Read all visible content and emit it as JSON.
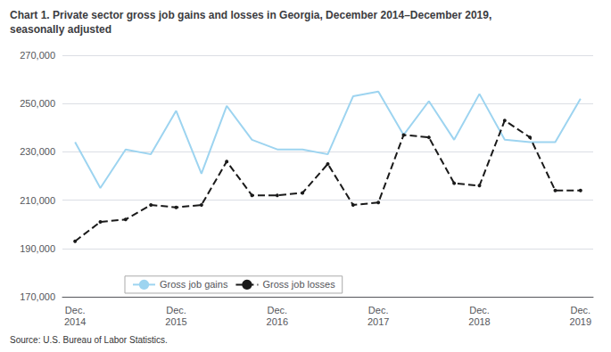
{
  "chart_data": {
    "type": "line",
    "title": "Chart 1. Private sector gross job gains and losses in Georgia, December 2014–December 2019,\nseasonally adjusted",
    "annotations": [
      "Source: U.S. Bureau of Labor Statistics."
    ],
    "categories": [
      "Dec.\n2014",
      null,
      null,
      null,
      "Dec.\n2015",
      null,
      null,
      null,
      "Dec.\n2016",
      null,
      null,
      null,
      "Dec.\n2017",
      null,
      null,
      null,
      "Dec.\n2018",
      null,
      null,
      null,
      "Dec.\n2019"
    ],
    "series": [
      {
        "name": "Gross job gains",
        "color": "#9DD4F0",
        "line_style": "solid",
        "marker": "none",
        "values": [
          234000,
          215000,
          231000,
          229000,
          247000,
          221000,
          249000,
          235000,
          231000,
          231000,
          229000,
          253000,
          255000,
          237000,
          251000,
          235000,
          254000,
          235000,
          234000,
          234000,
          252000
        ]
      },
      {
        "name": "Gross job losses",
        "color": "#1A1A1A",
        "line_style": "dashed",
        "marker": "circle",
        "values": [
          193000,
          201000,
          202000,
          208000,
          207000,
          208000,
          226000,
          212000,
          212000,
          213000,
          225000,
          208000,
          209000,
          237000,
          236000,
          217000,
          216000,
          243000,
          236000,
          214000,
          214000
        ]
      }
    ],
    "ylim": [
      170000,
      270000
    ],
    "yticks": [
      {
        "value": 170000,
        "label": "170,000"
      },
      {
        "value": 190000,
        "label": "190,000"
      },
      {
        "value": 210000,
        "label": "210,000"
      },
      {
        "value": 230000,
        "label": "230,000"
      },
      {
        "value": 250000,
        "label": "250,000"
      },
      {
        "value": 270000,
        "label": "270,000"
      }
    ],
    "grid": true,
    "legend": "lower left"
  }
}
